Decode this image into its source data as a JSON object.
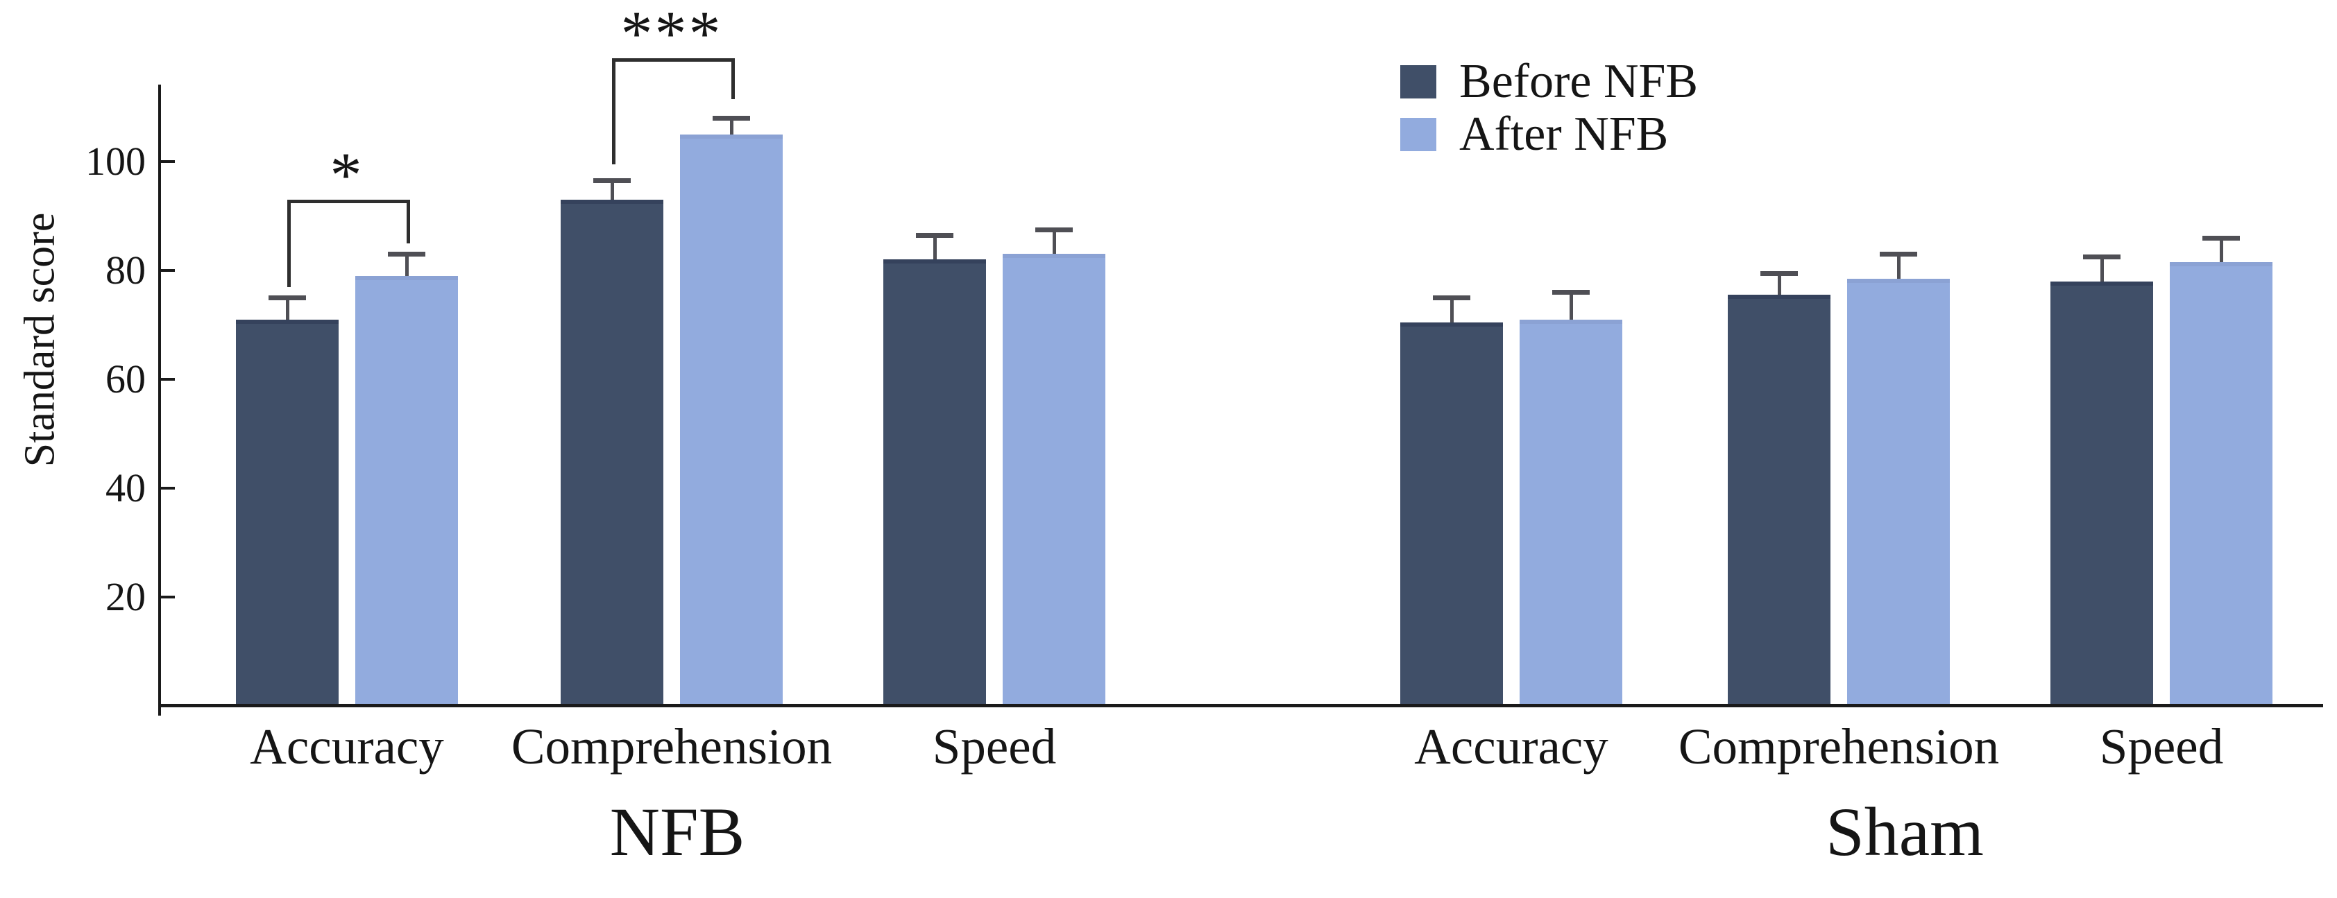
{
  "colors": {
    "before": "#404f68",
    "after": "#92abde",
    "axis": "#1a1a1a",
    "error_bar": "#4f4f55",
    "bracket": "#2e2e2e",
    "text": "#151515",
    "background": "#ffffff"
  },
  "chart_data": {
    "type": "bar",
    "title": "",
    "xlabel": "",
    "ylabel": "Standard score",
    "ylim": [
      0,
      114
    ],
    "yticks": [
      20,
      40,
      60,
      80,
      100
    ],
    "grid": false,
    "legend": {
      "position": "top-right",
      "entries": [
        {
          "label": "Before NFB",
          "color": "#404f68"
        },
        {
          "label": "After NFB",
          "color": "#92abde"
        }
      ]
    },
    "groups": [
      {
        "name": "NFB",
        "categories": [
          "Accuracy",
          "Comprehension",
          "Speed"
        ],
        "series": [
          {
            "name": "Before NFB",
            "values": [
              71,
              93,
              82
            ],
            "errors": [
              4,
              3.5,
              4.5
            ]
          },
          {
            "name": "After NFB",
            "values": [
              79,
              105,
              83
            ],
            "errors": [
              4,
              3,
              4.5
            ]
          }
        ]
      },
      {
        "name": "Sham",
        "categories": [
          "Accuracy",
          "Comprehension",
          "Speed"
        ],
        "series": [
          {
            "name": "Before NFB",
            "values": [
              70.5,
              75.5,
              78
            ],
            "errors": [
              4.5,
              4,
              4.5
            ]
          },
          {
            "name": "After NFB",
            "values": [
              71,
              78.5,
              81.5
            ],
            "errors": [
              5,
              4.5,
              4.5
            ]
          }
        ]
      }
    ],
    "significance": [
      {
        "group": "NFB",
        "category": "Accuracy",
        "label": "*",
        "bracket_top_value": 93,
        "left_leg_bottom_value": 77,
        "right_leg_bottom_value": 85
      },
      {
        "group": "NFB",
        "category": "Comprehension",
        "label": "***",
        "bracket_top_value": 119,
        "left_leg_bottom_value": 99.5,
        "right_leg_bottom_value": 111.5
      }
    ]
  }
}
